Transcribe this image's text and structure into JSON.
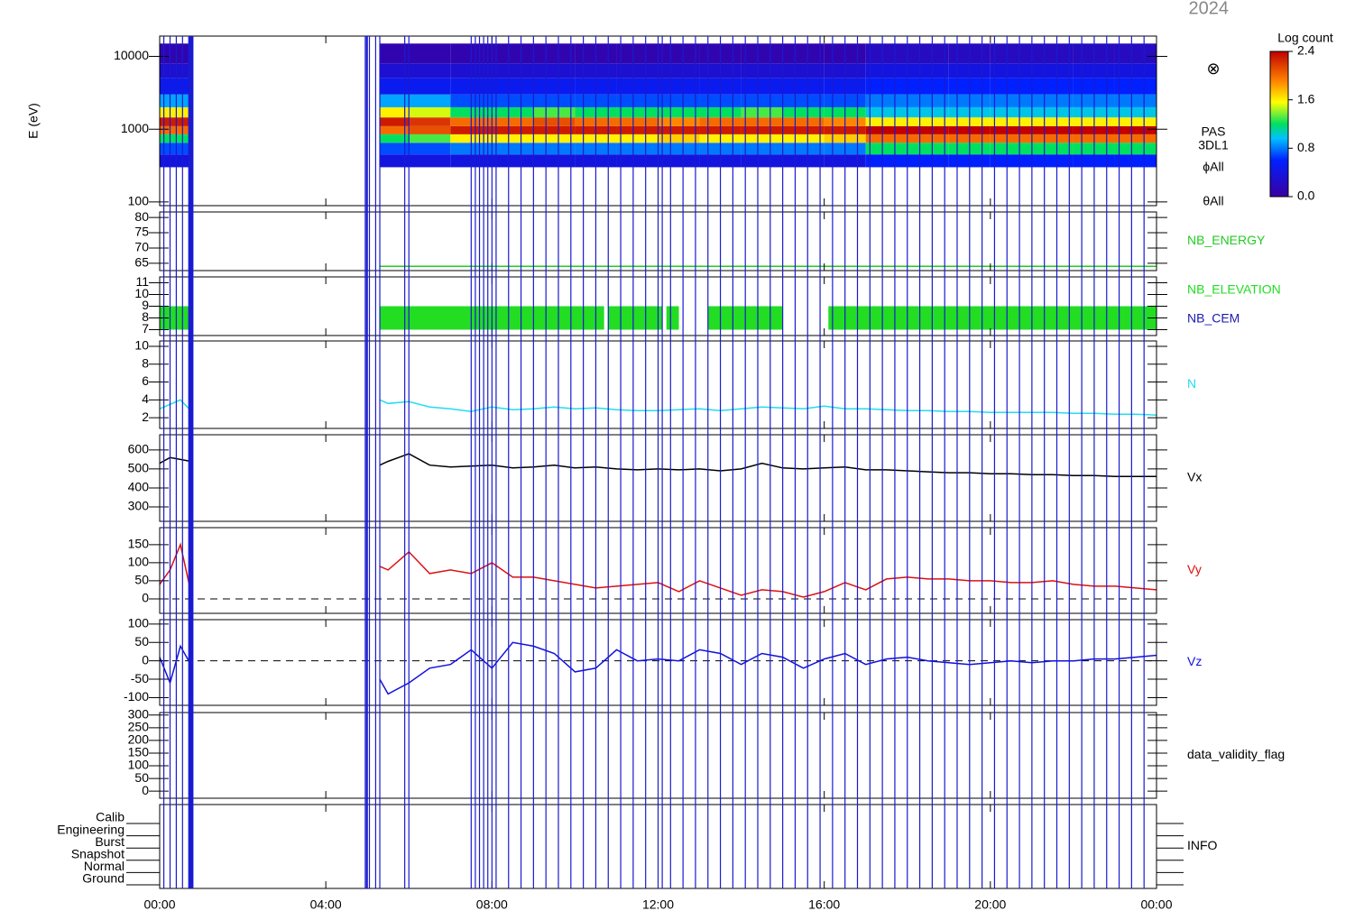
{
  "title": "2024",
  "events": [
    0.1,
    0.25,
    0.4,
    0.55,
    0.7,
    0.72,
    0.74,
    0.76,
    0.78,
    0.8,
    4.95,
    4.98,
    5.0,
    5.05,
    5.2,
    5.3,
    5.9,
    6.0,
    7.5,
    7.6,
    7.7,
    7.8,
    7.9,
    8.0,
    8.1,
    8.4,
    8.7,
    9.0,
    9.3,
    9.6,
    9.9,
    10.2,
    10.5,
    10.8,
    11.1,
    11.4,
    11.7,
    12.0,
    12.1,
    12.3,
    12.6,
    12.9,
    13.2,
    13.5,
    13.8,
    14.1,
    14.4,
    14.7,
    15.0,
    15.3,
    15.6,
    15.9,
    16.2,
    16.5,
    16.8,
    17.1,
    17.4,
    17.7,
    18.0,
    18.3,
    18.6,
    18.9,
    19.2,
    19.5,
    19.8,
    20.1,
    20.4,
    20.7,
    21.0,
    21.3,
    21.6,
    21.9,
    22.2,
    22.5,
    22.8,
    23.1,
    23.4,
    23.7
  ],
  "chart_data": [
    {
      "type": "heatmap",
      "ylabel": "E (eV)",
      "log": true,
      "xlim": [
        0,
        24
      ],
      "ylim": [
        89,
        19000
      ],
      "yticks": [
        100,
        1000,
        10000
      ],
      "instrument_labels": [
        "PAS",
        "3DL1",
        "ϕAll",
        "θAll"
      ],
      "symbol": "⊗",
      "colorbar_label": "Log count",
      "zlim": [
        0,
        2.4
      ],
      "zticks": [
        {
          "value": 0,
          "label": "0.0"
        },
        {
          "value": 0.8,
          "label": "0.8"
        },
        {
          "value": 1.6,
          "label": "1.6"
        },
        {
          "value": 2.4,
          "label": "2.4"
        }
      ],
      "xbins": [
        0,
        0.8,
        5.3,
        6,
        7,
        8,
        9,
        10,
        11,
        12,
        13,
        14,
        15,
        16,
        17,
        18,
        19,
        20,
        21,
        22,
        23,
        24
      ],
      "ybins": [
        300,
        450,
        650,
        850,
        1100,
        1450,
        2000,
        3000,
        5000,
        8000,
        15000
      ],
      "z": [
        [
          0.4,
          0.7,
          1.2,
          2.0,
          2.3,
          1.6,
          0.9,
          0.5,
          0.3,
          0.1
        ],
        null,
        [
          0.4,
          0.7,
          1.2,
          2.0,
          2.3,
          1.6,
          0.9,
          0.5,
          0.3,
          0.1
        ],
        [
          0.4,
          0.7,
          1.3,
          2.1,
          2.2,
          1.5,
          0.9,
          0.5,
          0.3,
          0.1
        ],
        [
          0.4,
          0.8,
          1.6,
          2.3,
          2.0,
          1.2,
          0.7,
          0.5,
          0.3,
          0.1
        ],
        [
          0.4,
          0.8,
          1.6,
          2.3,
          2.0,
          1.2,
          0.7,
          0.5,
          0.3,
          0.1
        ],
        [
          0.4,
          0.8,
          1.6,
          2.3,
          2.1,
          1.3,
          0.7,
          0.5,
          0.3,
          0.1
        ],
        [
          0.4,
          0.8,
          1.6,
          2.3,
          2.0,
          1.2,
          0.7,
          0.5,
          0.3,
          0.1
        ],
        [
          0.4,
          0.8,
          1.6,
          2.3,
          2.0,
          1.2,
          0.7,
          0.5,
          0.3,
          0.1
        ],
        [
          0.4,
          0.8,
          1.7,
          2.3,
          1.9,
          1.2,
          0.7,
          0.5,
          0.3,
          0.1
        ],
        [
          0.4,
          0.8,
          1.6,
          2.3,
          2.0,
          1.2,
          0.7,
          0.5,
          0.3,
          0.1
        ],
        [
          0.4,
          0.8,
          1.6,
          2.3,
          2.0,
          1.3,
          0.7,
          0.5,
          0.3,
          0.1
        ],
        [
          0.4,
          0.8,
          1.6,
          2.3,
          2.0,
          1.2,
          0.7,
          0.5,
          0.3,
          0.1
        ],
        [
          0.4,
          0.8,
          1.7,
          2.3,
          1.9,
          1.2,
          0.7,
          0.5,
          0.3,
          0.1
        ],
        [
          0.6,
          1.2,
          2.0,
          2.4,
          1.6,
          1.0,
          0.8,
          0.6,
          0.4,
          0.2
        ],
        [
          0.6,
          1.2,
          2.0,
          2.4,
          1.6,
          1.0,
          0.8,
          0.6,
          0.4,
          0.2
        ],
        [
          0.6,
          1.2,
          2.0,
          2.4,
          1.6,
          1.0,
          0.8,
          0.6,
          0.4,
          0.2
        ],
        [
          0.6,
          1.2,
          2.0,
          2.4,
          1.6,
          1.0,
          0.8,
          0.6,
          0.4,
          0.2
        ],
        [
          0.6,
          1.2,
          2.0,
          2.4,
          1.6,
          1.0,
          0.8,
          0.6,
          0.4,
          0.2
        ],
        [
          0.6,
          1.2,
          2.0,
          2.4,
          1.6,
          1.0,
          0.8,
          0.6,
          0.4,
          0.2
        ],
        [
          0.6,
          1.2,
          2.0,
          2.4,
          1.6,
          1.0,
          0.8,
          0.6,
          0.4,
          0.2
        ]
      ]
    },
    {
      "type": "line",
      "name": "NB_ENERGY",
      "color": "#22cc22",
      "xlim": [
        0,
        24
      ],
      "ylim": [
        62.6,
        81.8
      ],
      "yticks": [
        65,
        70,
        75,
        80
      ],
      "x": [
        5.3,
        24
      ],
      "values": [
        64,
        64
      ]
    },
    {
      "type": "band",
      "xlim": [
        0,
        24
      ],
      "ylim": [
        6.5,
        11.5
      ],
      "yticks": [
        7,
        8,
        9,
        10,
        11
      ],
      "series": [
        {
          "name": "NB_ELEVATION",
          "color": "#22dd22",
          "low": 7,
          "high": 9,
          "spans": [
            [
              0,
              0.8
            ],
            [
              5.3,
              10.7
            ],
            [
              10.8,
              12.1
            ],
            [
              12.2,
              12.5
            ],
            [
              13.2,
              15
            ],
            [
              16.1,
              24
            ]
          ]
        },
        {
          "name": "NB_CEM",
          "color": "#1a1ab0"
        }
      ]
    },
    {
      "type": "line",
      "name": "N",
      "color": "#22ddee",
      "xlim": [
        0,
        24
      ],
      "ylim": [
        0.8,
        10.6
      ],
      "yticks": [
        2,
        4,
        6,
        8,
        10
      ],
      "x": [
        0,
        0.25,
        0.5,
        0.75,
        3,
        5.3,
        5.5,
        6,
        6.5,
        7,
        7.5,
        8,
        8.5,
        9,
        9.5,
        10,
        10.5,
        11,
        11.5,
        12,
        12.5,
        13,
        13.5,
        14,
        14.5,
        15,
        15.5,
        16,
        16.5,
        17,
        17.5,
        18,
        18.5,
        19,
        19.5,
        20,
        20.5,
        21,
        21.5,
        22,
        22.5,
        23,
        23.5,
        24
      ],
      "values": [
        3,
        3.5,
        4,
        2.8,
        null,
        4,
        3.6,
        3.8,
        3.2,
        3,
        2.7,
        3.2,
        2.9,
        3,
        3.2,
        3,
        3.1,
        2.9,
        2.8,
        2.8,
        2.9,
        3,
        2.8,
        3,
        3.2,
        3.1,
        3,
        3.3,
        3,
        3,
        2.9,
        2.8,
        2.8,
        2.7,
        2.7,
        2.6,
        2.6,
        2.6,
        2.6,
        2.5,
        2.5,
        2.4,
        2.4,
        2.3
      ]
    },
    {
      "type": "line",
      "name": "Vx",
      "color": "#000000",
      "xlim": [
        0,
        24
      ],
      "ylim": [
        224,
        680
      ],
      "yticks": [
        300,
        400,
        500,
        600
      ],
      "x": [
        0,
        0.25,
        0.5,
        0.75,
        3,
        5.3,
        5.5,
        6,
        6.5,
        7,
        7.5,
        8,
        8.5,
        9,
        9.5,
        10,
        10.5,
        11,
        11.5,
        12,
        12.5,
        13,
        13.5,
        14,
        14.5,
        15,
        15.5,
        16,
        16.5,
        17,
        17.5,
        18,
        18.5,
        19,
        19.5,
        20,
        20.5,
        21,
        21.5,
        22,
        22.5,
        23,
        23.5,
        24
      ],
      "values": [
        530,
        560,
        550,
        540,
        null,
        520,
        540,
        580,
        520,
        510,
        515,
        520,
        505,
        510,
        520,
        505,
        510,
        500,
        495,
        500,
        495,
        500,
        490,
        500,
        530,
        505,
        500,
        505,
        510,
        495,
        495,
        490,
        485,
        480,
        480,
        475,
        475,
        470,
        470,
        465,
        465,
        460,
        460,
        460
      ]
    },
    {
      "type": "line",
      "name": "Vy",
      "color": "#dd1111",
      "xlim": [
        0,
        24
      ],
      "ylim": [
        -40,
        197
      ],
      "yticks": [
        0,
        50,
        100,
        150
      ],
      "reference_line": 0,
      "x": [
        0,
        0.25,
        0.5,
        0.75,
        3,
        5.3,
        5.5,
        6,
        6.5,
        7,
        7.5,
        8,
        8.5,
        9,
        9.5,
        10,
        10.5,
        11,
        11.5,
        12,
        12.5,
        13,
        13.5,
        14,
        14.5,
        15,
        15.5,
        16,
        16.5,
        17,
        17.5,
        18,
        18.5,
        19,
        19.5,
        20,
        20.5,
        21,
        21.5,
        22,
        22.5,
        23,
        23.5,
        24
      ],
      "values": [
        40,
        80,
        150,
        20,
        null,
        90,
        80,
        130,
        70,
        80,
        70,
        100,
        60,
        60,
        50,
        40,
        30,
        35,
        40,
        45,
        20,
        50,
        30,
        10,
        25,
        20,
        5,
        20,
        45,
        25,
        55,
        60,
        55,
        55,
        50,
        50,
        45,
        45,
        50,
        40,
        35,
        35,
        30,
        25
      ]
    },
    {
      "type": "line",
      "name": "Vz",
      "color": "#1111dd",
      "xlim": [
        0,
        24
      ],
      "ylim": [
        -121,
        112
      ],
      "yticks": [
        -100,
        -50,
        0,
        50,
        100
      ],
      "reference_line": 0,
      "x": [
        0,
        0.25,
        0.5,
        0.75,
        3,
        5.3,
        5.5,
        6,
        6.5,
        7,
        7.5,
        8,
        8.5,
        9,
        9.5,
        10,
        10.5,
        11,
        11.5,
        12,
        12.5,
        13,
        13.5,
        14,
        14.5,
        15,
        15.5,
        16,
        16.5,
        17,
        17.5,
        18,
        18.5,
        19,
        19.5,
        20,
        20.5,
        21,
        21.5,
        22,
        22.5,
        23,
        23.5,
        24
      ],
      "values": [
        10,
        -60,
        40,
        -10,
        null,
        -50,
        -90,
        -60,
        -20,
        -10,
        30,
        -20,
        50,
        40,
        20,
        -30,
        -20,
        30,
        0,
        5,
        0,
        30,
        20,
        -10,
        20,
        10,
        -20,
        5,
        20,
        -10,
        5,
        10,
        0,
        -5,
        -10,
        -5,
        0,
        -5,
        0,
        0,
        5,
        5,
        10,
        15
      ]
    },
    {
      "type": "empty",
      "name": "data_validity_flag",
      "color": "#000000",
      "xlim": [
        0,
        24
      ],
      "ylim": [
        -28,
        310
      ],
      "yticks": [
        0,
        50,
        100,
        150,
        200,
        250,
        300
      ]
    },
    {
      "type": "category",
      "name": "INFO",
      "color": "#000000",
      "xlim": [
        0,
        24
      ],
      "categories": [
        "Calib",
        "Engineering",
        "Burst",
        "Snapshot",
        "Normal",
        "Ground"
      ],
      "xticks": [
        {
          "value": 0,
          "label": "00:00"
        },
        {
          "value": 4,
          "label": "04:00"
        },
        {
          "value": 8,
          "label": "08:00"
        },
        {
          "value": 12,
          "label": "12:00"
        },
        {
          "value": 16,
          "label": "16:00"
        },
        {
          "value": 20,
          "label": "20:00"
        },
        {
          "value": 24,
          "label": "00:00"
        }
      ]
    }
  ]
}
